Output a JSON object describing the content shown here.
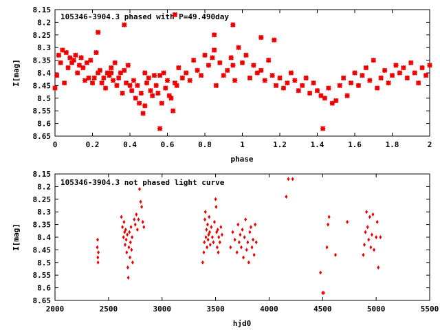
{
  "chart_data": [
    {
      "type": "scatter",
      "title": "105346-3904.3 phased with P=49.490day",
      "xlabel": "phase",
      "ylabel": "I[mag]",
      "xlim": [
        0,
        2
      ],
      "ylim": [
        8.15,
        8.65
      ],
      "y_inverted": true,
      "x_ticks": [
        "0",
        "0.2",
        "0.4",
        "0.6",
        "0.8",
        "1",
        "1.2",
        "1.4",
        "1.6",
        "1.8",
        "2"
      ],
      "y_ticks": [
        "8.15",
        "8.2",
        "8.25",
        "8.3",
        "8.35",
        "8.4",
        "8.45",
        "8.5",
        "8.55",
        "8.6",
        "8.65"
      ],
      "grid": false,
      "marker_color": "#ee0000",
      "marker": "asterisk",
      "series": [
        {
          "x": [
            0.0,
            0.01,
            0.02,
            0.03,
            0.04,
            0.05,
            0.06,
            0.07,
            0.08,
            0.09,
            0.1,
            0.11,
            0.12,
            0.13,
            0.14,
            0.15,
            0.16,
            0.17,
            0.18,
            0.19,
            0.2,
            0.21,
            0.22,
            0.23,
            0.24,
            0.25,
            0.26,
            0.27,
            0.28,
            0.29,
            0.3,
            0.31,
            0.32,
            0.33,
            0.34,
            0.35,
            0.36,
            0.37,
            0.38,
            0.39,
            0.4,
            0.41,
            0.42,
            0.43,
            0.44,
            0.45,
            0.46,
            0.47,
            0.48,
            0.49,
            0.5,
            0.51,
            0.52,
            0.53,
            0.54,
            0.55,
            0.56,
            0.57,
            0.58,
            0.59,
            0.6,
            0.61,
            0.62,
            0.63,
            0.64,
            0.65,
            0.66,
            0.68,
            0.7,
            0.72,
            0.74,
            0.76,
            0.78,
            0.8,
            0.82,
            0.84,
            0.85,
            0.86,
            0.88,
            0.9,
            0.92,
            0.94,
            0.95,
            0.96,
            0.98,
            1.0,
            1.02,
            1.04,
            1.06,
            1.08,
            1.1,
            1.12,
            1.14,
            1.16,
            1.18,
            1.2,
            1.22,
            1.24,
            1.26,
            1.28,
            1.3,
            1.32,
            1.34,
            1.36,
            1.38,
            1.4,
            1.42,
            1.43,
            1.44,
            1.46,
            1.48,
            1.5,
            1.52,
            1.54,
            1.56,
            1.58,
            1.6,
            1.62,
            1.64,
            1.66,
            1.68,
            1.7,
            1.72,
            1.74,
            1.76,
            1.78,
            1.8,
            1.82,
            1.84,
            1.86,
            1.88,
            1.9,
            1.92,
            1.94,
            1.96,
            1.98,
            2.0,
            0.23,
            0.37,
            0.56,
            0.64,
            0.95,
            1.1,
            1.17,
            0.85,
            0.48,
            0.3
          ],
          "y": [
            8.46,
            8.41,
            8.33,
            8.36,
            8.31,
            8.44,
            8.32,
            8.38,
            8.34,
            8.36,
            8.35,
            8.33,
            8.4,
            8.37,
            8.34,
            8.38,
            8.43,
            8.36,
            8.42,
            8.35,
            8.44,
            8.42,
            8.32,
            8.4,
            8.39,
            8.44,
            8.42,
            8.46,
            8.4,
            8.41,
            8.38,
            8.43,
            8.36,
            8.45,
            8.42,
            8.4,
            8.48,
            8.39,
            8.44,
            8.37,
            8.45,
            8.47,
            8.43,
            8.5,
            8.45,
            8.52,
            8.48,
            8.56,
            8.4,
            8.44,
            8.42,
            8.47,
            8.49,
            8.41,
            8.45,
            8.48,
            8.62,
            8.52,
            8.4,
            8.46,
            8.43,
            8.49,
            8.5,
            8.55,
            8.44,
            8.45,
            8.38,
            8.42,
            8.4,
            8.43,
            8.35,
            8.39,
            8.41,
            8.33,
            8.37,
            8.34,
            8.31,
            8.45,
            8.36,
            8.41,
            8.39,
            8.34,
            8.37,
            8.43,
            8.3,
            8.36,
            8.33,
            8.42,
            8.37,
            8.4,
            8.39,
            8.43,
            8.35,
            8.41,
            8.45,
            8.42,
            8.46,
            8.44,
            8.4,
            8.43,
            8.47,
            8.45,
            8.42,
            8.48,
            8.44,
            8.47,
            8.49,
            8.62,
            8.5,
            8.46,
            8.52,
            8.51,
            8.45,
            8.42,
            8.49,
            8.44,
            8.4,
            8.45,
            8.41,
            8.38,
            8.43,
            8.35,
            8.46,
            8.42,
            8.39,
            8.44,
            8.41,
            8.37,
            8.4,
            8.38,
            8.42,
            8.36,
            8.4,
            8.44,
            8.38,
            8.41,
            8.37,
            8.24,
            8.21,
            8.41,
            8.17,
            8.21,
            8.26,
            8.27,
            8.25,
            8.53,
            8.4
          ]
        }
      ]
    },
    {
      "type": "scatter",
      "title": "105346-3904.3 not phased light curve",
      "xlabel": "hjd0",
      "ylabel": "I[mag]",
      "xlim": [
        2000,
        5500
      ],
      "ylim": [
        8.15,
        8.65
      ],
      "y_inverted": true,
      "x_ticks": [
        "2000",
        "2500",
        "3000",
        "3500",
        "4000",
        "4500",
        "5000",
        "5500"
      ],
      "y_ticks": [
        "8.15",
        "8.2",
        "8.25",
        "8.3",
        "8.35",
        "8.4",
        "8.45",
        "8.5",
        "8.55",
        "8.6",
        "8.65"
      ],
      "grid": false,
      "marker_color": "#ee0000",
      "marker": "diamond",
      "series": [
        {
          "x": [
            2395,
            2398,
            2400,
            2402,
            2405,
            2620,
            2630,
            2640,
            2645,
            2650,
            2655,
            2660,
            2665,
            2670,
            2675,
            2680,
            2685,
            2690,
            2695,
            2700,
            2705,
            2710,
            2715,
            2720,
            2725,
            2740,
            2750,
            2760,
            2770,
            2780,
            2790,
            2800,
            2810,
            2820,
            2830,
            3380,
            3390,
            3395,
            3400,
            3405,
            3410,
            3415,
            3420,
            3425,
            3430,
            3435,
            3440,
            3445,
            3450,
            3460,
            3470,
            3480,
            3490,
            3500,
            3505,
            3510,
            3515,
            3520,
            3525,
            3530,
            3540,
            3550,
            3560,
            3640,
            3660,
            3680,
            3700,
            3710,
            3720,
            3730,
            3740,
            3750,
            3760,
            3770,
            3780,
            3790,
            3800,
            3810,
            3820,
            3830,
            3840,
            3850,
            3860,
            3870,
            3880,
            4160,
            4180,
            4220,
            4480,
            4500,
            4510,
            4540,
            4550,
            4560,
            4620,
            4730,
            4880,
            4890,
            4900,
            4910,
            4920,
            4930,
            4940,
            4950,
            4960,
            4970,
            4980,
            5000,
            5010,
            5020,
            5040
          ],
          "y": [
            8.44,
            8.41,
            8.48,
            8.5,
            8.46,
            8.32,
            8.36,
            8.4,
            8.34,
            8.38,
            8.43,
            8.37,
            8.41,
            8.46,
            8.39,
            8.52,
            8.56,
            8.44,
            8.38,
            8.48,
            8.42,
            8.36,
            8.45,
            8.4,
            8.5,
            8.33,
            8.35,
            8.31,
            8.37,
            8.33,
            8.21,
            8.26,
            8.28,
            8.34,
            8.36,
            8.5,
            8.46,
            8.42,
            8.33,
            8.3,
            8.4,
            8.37,
            8.44,
            8.35,
            8.41,
            8.39,
            8.32,
            8.38,
            8.43,
            8.36,
            8.4,
            8.42,
            8.34,
            8.25,
            8.28,
            8.38,
            8.44,
            8.37,
            8.46,
            8.4,
            8.42,
            8.36,
            8.39,
            8.44,
            8.38,
            8.41,
            8.46,
            8.35,
            8.42,
            8.39,
            8.44,
            8.37,
            8.48,
            8.4,
            8.33,
            8.45,
            8.42,
            8.5,
            8.38,
            8.36,
            8.44,
            8.41,
            8.47,
            8.35,
            8.42,
            8.24,
            8.17,
            8.17,
            8.54,
            8.62,
            8.62,
            8.44,
            8.35,
            8.32,
            8.47,
            8.34,
            8.47,
            8.43,
            8.38,
            8.3,
            8.36,
            8.41,
            8.32,
            8.44,
            8.39,
            8.31,
            8.45,
            8.4,
            8.34,
            8.52,
            8.4
          ]
        }
      ]
    }
  ]
}
